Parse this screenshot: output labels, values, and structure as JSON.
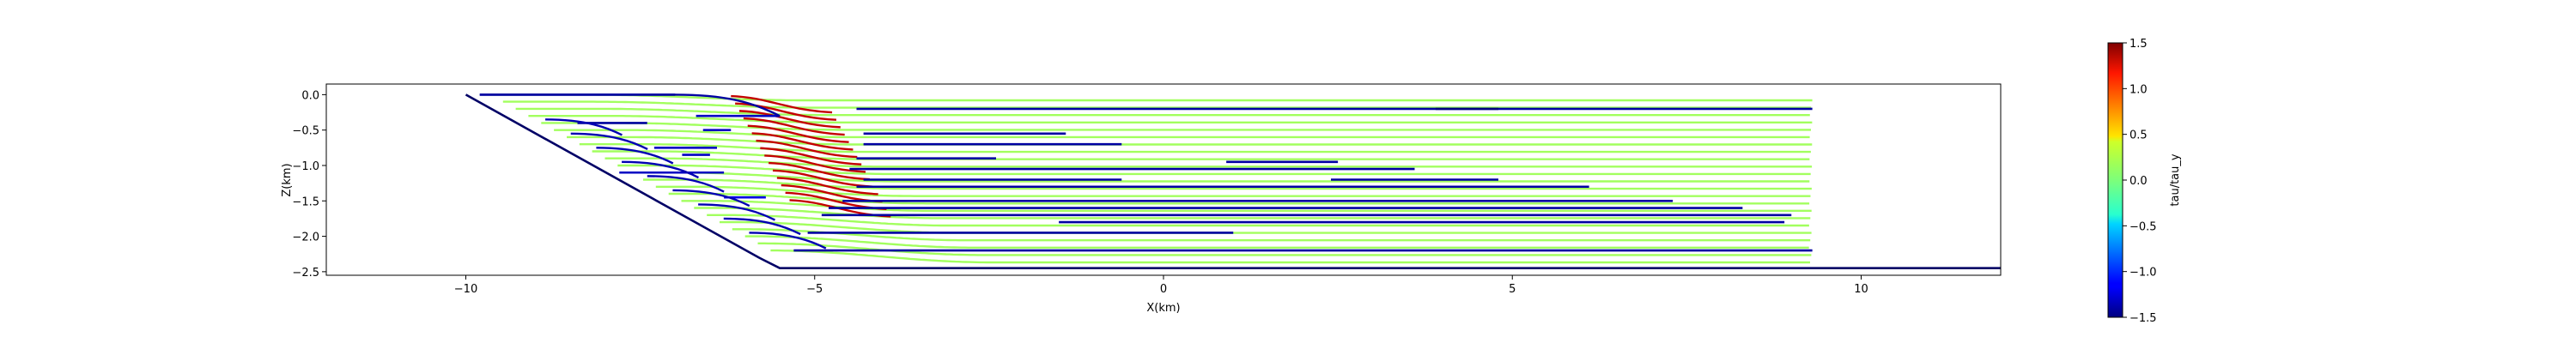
{
  "chart_data": {
    "type": "line",
    "title": "",
    "xlabel": "X(km)",
    "ylabel": "Z(km)",
    "xlim": [
      -12.0,
      12.0
    ],
    "ylim": [
      -2.55,
      0.15
    ],
    "xticks": [
      -10,
      -5,
      0,
      5,
      10
    ],
    "xtick_labels": [
      "−10",
      "−5",
      "0",
      "5",
      "10"
    ],
    "yticks": [
      0.0,
      -0.5,
      -1.0,
      -1.5,
      -2.0,
      -2.5
    ],
    "ytick_labels": [
      "0.0",
      "−0.5",
      "−1.0",
      "−1.5",
      "−2.0",
      "−2.5"
    ],
    "colorbar": {
      "label": "tau/tau_y",
      "min": -1.5,
      "max": 1.5,
      "colormap": "jet",
      "ticks": [
        1.5,
        1.0,
        0.5,
        0.0,
        -0.5,
        -1.0,
        -1.5
      ],
      "tick_labels": [
        "1.5",
        "1.0",
        "0.5",
        "0.0",
        "−0.5",
        "−1.0",
        "−1.5"
      ]
    },
    "boundary_color": "#000066",
    "boundary": {
      "x": [
        -10.0,
        -5.8,
        -5.5,
        12.0
      ],
      "y": [
        0.0,
        -2.3,
        -2.45,
        -2.45
      ]
    },
    "streamline_levels": [
      0.0,
      -0.1,
      -0.2,
      -0.3,
      -0.4,
      -0.5,
      -0.6,
      -0.7,
      -0.8,
      -0.9,
      -1.0,
      -1.1,
      -1.2,
      -1.3,
      -1.4,
      -1.5,
      -1.6,
      -1.7,
      -1.8,
      -1.9,
      -2.0,
      -2.1,
      -2.2
    ],
    "streamline_x_end": 9.3,
    "segments": [
      {
        "x0": -9.8,
        "x1": -7.0,
        "y": 0.0,
        "v": -1.4
      },
      {
        "x0": -4.4,
        "x1": 9.3,
        "y": -0.2,
        "v": -1.4
      },
      {
        "x0": 3.9,
        "x1": 4.8,
        "y": -0.2,
        "v": -1.5
      },
      {
        "x0": -8.4,
        "x1": -7.4,
        "y": -0.4,
        "v": -1.4
      },
      {
        "x0": -4.3,
        "x1": -1.4,
        "y": -0.55,
        "v": -1.4
      },
      {
        "x0": -4.3,
        "x1": -0.6,
        "y": -0.7,
        "v": -1.4
      },
      {
        "x0": -4.4,
        "x1": -2.4,
        "y": -0.9,
        "v": -1.4
      },
      {
        "x0": 0.9,
        "x1": 2.5,
        "y": -0.95,
        "v": -1.4
      },
      {
        "x0": -4.5,
        "x1": 3.6,
        "y": -1.05,
        "v": -1.4
      },
      {
        "x0": -4.3,
        "x1": -0.6,
        "y": -1.2,
        "v": -1.4
      },
      {
        "x0": 2.4,
        "x1": 4.8,
        "y": -1.2,
        "v": -1.4
      },
      {
        "x0": -4.4,
        "x1": 6.1,
        "y": -1.3,
        "v": -1.4
      },
      {
        "x0": -4.6,
        "x1": 7.3,
        "y": -1.5,
        "v": -1.4
      },
      {
        "x0": -4.8,
        "x1": 8.3,
        "y": -1.6,
        "v": -1.4
      },
      {
        "x0": -4.9,
        "x1": 9.0,
        "y": -1.7,
        "v": -1.4
      },
      {
        "x0": -1.5,
        "x1": 8.9,
        "y": -1.8,
        "v": -1.4
      },
      {
        "x0": -5.1,
        "x1": 1.0,
        "y": -1.95,
        "v": -1.4
      },
      {
        "x0": -5.3,
        "x1": 9.3,
        "y": -2.2,
        "v": -1.4
      },
      {
        "x0": -7.8,
        "x1": -6.3,
        "y": -1.1,
        "v": -1.3
      },
      {
        "x0": -7.3,
        "x1": -6.4,
        "y": -0.75,
        "v": -1.3
      },
      {
        "x0": -6.9,
        "x1": -6.5,
        "y": -0.85,
        "v": -1.3
      },
      {
        "x0": -6.7,
        "x1": -5.5,
        "y": -0.3,
        "v": -1.3
      },
      {
        "x0": -6.6,
        "x1": -6.2,
        "y": -0.5,
        "v": -1.3
      },
      {
        "x0": -6.3,
        "x1": -5.7,
        "y": -1.45,
        "v": -1.2
      }
    ],
    "red_curve_count": 15
  }
}
